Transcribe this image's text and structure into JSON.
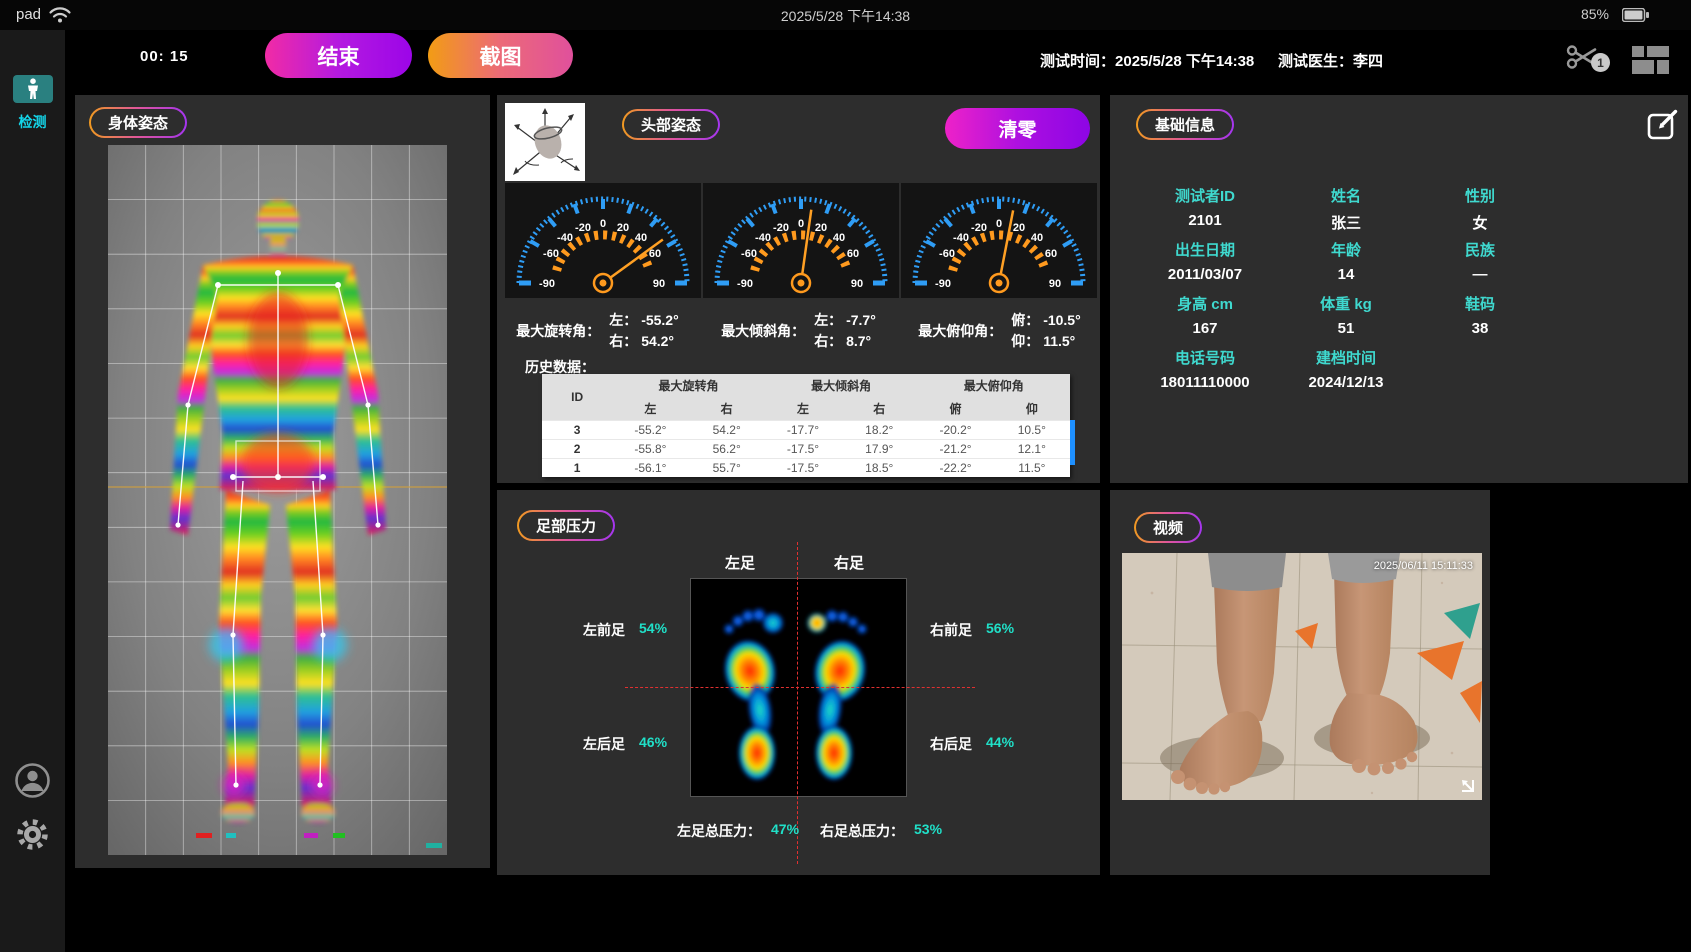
{
  "status_bar": {
    "device": "pad",
    "datetime": "2025/5/28 下午14:38",
    "battery": "85%"
  },
  "toolbar": {
    "timer": "00: 15",
    "end_button": "结束",
    "screenshot_button": "截图",
    "test_time_label": "测试时间：",
    "test_time": "2025/5/28 下午14:38",
    "doctor_label": "测试医生：",
    "doctor": "李四",
    "clip_badge": "1"
  },
  "sidebar": {
    "detect": "检测"
  },
  "body_posture": {
    "title": "身体姿态"
  },
  "head_posture": {
    "title": "头部姿态",
    "reset_button": "清零",
    "gauge_ticks": [
      "-90",
      "-60",
      "-40",
      "-20",
      "0",
      "20",
      "40",
      "60",
      "90"
    ],
    "gauges": [
      {
        "name": "max-rotation",
        "needle_deg": 54
      },
      {
        "name": "max-tilt",
        "needle_deg": 8
      },
      {
        "name": "max-pitch",
        "needle_deg": 11
      }
    ],
    "stats": [
      {
        "name": "最大旋转角：",
        "l1": "左：",
        "v1": "-55.2°",
        "l2": "右：",
        "v2": "54.2°"
      },
      {
        "name": "最大倾斜角：",
        "l1": "左：",
        "v1": "-7.7°",
        "l2": "右：",
        "v2": "8.7°"
      },
      {
        "name": "最大俯仰角：",
        "l1": "俯：",
        "v1": "-10.5°",
        "l2": "仰：",
        "v2": "11.5°"
      }
    ],
    "history_label": "历史数据：",
    "table": {
      "id_header": "ID",
      "groups": [
        "最大旋转角",
        "最大倾斜角",
        "最大俯仰角"
      ],
      "subs": [
        "左",
        "右",
        "左",
        "右",
        "俯",
        "仰"
      ],
      "rows": [
        {
          "id": "3",
          "c": [
            "-55.2°",
            "54.2°",
            "-17.7°",
            "18.2°",
            "-20.2°",
            "10.5°"
          ]
        },
        {
          "id": "2",
          "c": [
            "-55.8°",
            "56.2°",
            "-17.5°",
            "17.9°",
            "-21.2°",
            "12.1°"
          ]
        },
        {
          "id": "1",
          "c": [
            "-56.1°",
            "55.7°",
            "-17.5°",
            "18.5°",
            "-22.2°",
            "11.5°"
          ]
        }
      ]
    }
  },
  "basic_info": {
    "title": "基础信息",
    "rows": [
      [
        {
          "label": "测试者ID",
          "value": "2101"
        },
        {
          "label": "姓名",
          "value": "张三"
        },
        {
          "label": "性别",
          "value": "女"
        }
      ],
      [
        {
          "label": "出生日期",
          "value": "2011/03/07"
        },
        {
          "label": "年龄",
          "value": "14"
        },
        {
          "label": "民族",
          "value": "—"
        }
      ],
      [
        {
          "label": "身高 cm",
          "value": "167"
        },
        {
          "label": "体重 kg",
          "value": "51"
        },
        {
          "label": "鞋码",
          "value": "38"
        }
      ],
      [
        {
          "label": "电话号码",
          "value": "18011110000"
        },
        {
          "label": "建档时间",
          "value": "2024/12/13"
        }
      ]
    ]
  },
  "foot_pressure": {
    "title": "足部压力",
    "left_col": "左足",
    "right_col": "右足",
    "lf": {
      "label": "左前足",
      "value": "54%"
    },
    "rf": {
      "label": "右前足",
      "value": "56%"
    },
    "lb": {
      "label": "左后足",
      "value": "46%"
    },
    "rb": {
      "label": "右后足",
      "value": "44%"
    },
    "total_left_label": "左足总压力：",
    "total_left": "47%",
    "total_right_label": "右足总压力：",
    "total_right": "53%"
  },
  "video": {
    "title": "视频",
    "timestamp": "2025/06/11 15:11:33"
  },
  "colors": {
    "accent_orange": "#f09a20",
    "accent_magenta": "#e040c8",
    "accent_purple": "#9b05e8",
    "cyan_label": "#3fd9cf",
    "cyan_value": "#20e0c8",
    "gauge_blue": "#2f9df5",
    "gauge_orange": "#ff9a1e",
    "teal_button": "#2a8080",
    "red_dash": "#e03030"
  }
}
